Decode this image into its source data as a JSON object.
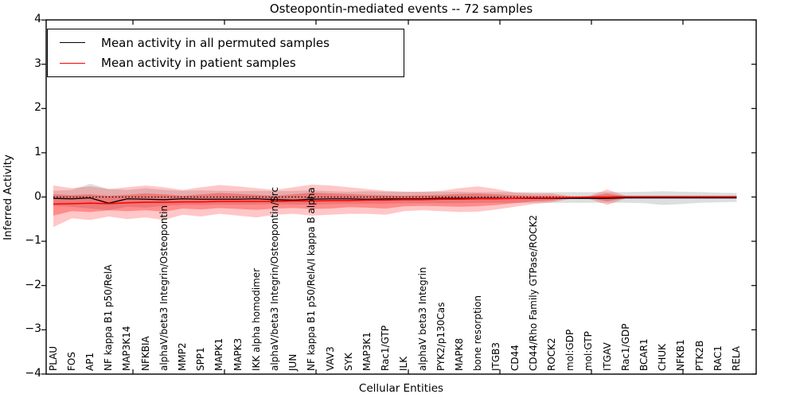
{
  "title": "Osteopontin-mediated events -- 72 samples",
  "axes": {
    "ylabel": "Inferred Activity",
    "xlabel": "Cellular Entities",
    "yticks": [
      "4",
      "3",
      "2",
      "1",
      "0",
      "−1",
      "−2",
      "−3",
      "−4"
    ]
  },
  "legend": {
    "items": [
      {
        "label": "Mean activity in all permuted samples",
        "color": "#000000"
      },
      {
        "label": "Mean activity in patient samples",
        "color": "#ff0000"
      }
    ]
  },
  "chart_data": {
    "type": "line",
    "title": "Osteopontin-mediated events -- 72 samples",
    "xlabel": "Cellular Entities",
    "ylabel": "Inferred Activity",
    "ylim": [
      -4,
      4
    ],
    "grid": false,
    "legend_position": "upper left",
    "baseline": {
      "value": 0,
      "style": "dotted",
      "color": "#000000"
    },
    "categories": [
      "PLAU",
      "FOS",
      "AP1",
      "NF kappa B1 p50/RelA",
      "MAP3K14",
      "NFKBIA",
      "alphaV/beta3 Integrin/Osteopontin",
      "MMP2",
      "SPP1",
      "MAPK1",
      "MAPK3",
      "IKK alpha homodimer",
      "alphaV/beta3 Integrin/Osteopontin/Src",
      "JUN",
      "NF kappa B1 p50/RelA/I kappa B alpha",
      "VAV3",
      "SYK",
      "MAP3K1",
      "Rac1/GTP",
      "ILK",
      "alphaV beta3 Integrin",
      "PYK2/p130Cas",
      "MAPK8",
      "bone resorption",
      "ITGB3",
      "CD44",
      "CD44/Rho Family GTPase/ROCK2",
      "ROCK2",
      "mol:GDP",
      "mol:GTP",
      "ITGAV",
      "Rac1/GDP",
      "BCAR1",
      "CHUK",
      "NFKB1",
      "PTK2B",
      "RAC1",
      "RELA"
    ],
    "series": [
      {
        "name": "Mean activity in all permuted samples",
        "color": "#000000",
        "width": 1.3,
        "values": [
          -0.03,
          -0.04,
          -0.02,
          -0.14,
          -0.04,
          -0.05,
          -0.06,
          -0.04,
          -0.05,
          -0.05,
          -0.05,
          -0.04,
          -0.06,
          -0.07,
          -0.05,
          -0.04,
          -0.04,
          -0.05,
          -0.04,
          -0.04,
          -0.04,
          -0.03,
          -0.03,
          -0.03,
          -0.03,
          -0.03,
          -0.03,
          -0.03,
          -0.03,
          -0.03,
          -0.03,
          -0.02,
          -0.02,
          -0.02,
          -0.02,
          -0.02,
          -0.02,
          -0.02
        ]
      },
      {
        "name": "Mean activity in patient samples",
        "color": "#ff0000",
        "width": 1.5,
        "values": [
          -0.16,
          -0.15,
          -0.14,
          -0.15,
          -0.13,
          -0.12,
          -0.12,
          -0.11,
          -0.11,
          -0.1,
          -0.1,
          -0.1,
          -0.1,
          -0.09,
          -0.09,
          -0.08,
          -0.08,
          -0.07,
          -0.07,
          -0.06,
          -0.06,
          -0.05,
          -0.05,
          -0.04,
          -0.04,
          -0.03,
          -0.02,
          -0.02,
          -0.01,
          0.0,
          0.0,
          0.01,
          0.01,
          0.01,
          0.01,
          0.01,
          0.01,
          0.01
        ]
      }
    ],
    "bands": [
      {
        "name": "permuted-samples-range",
        "color": "rgba(0,0,0,0.13)",
        "upper": [
          0.14,
          0.16,
          0.3,
          0.18,
          0.16,
          0.2,
          0.16,
          0.14,
          0.15,
          0.14,
          0.13,
          0.14,
          0.13,
          0.14,
          0.15,
          0.13,
          0.12,
          0.13,
          0.12,
          0.12,
          0.12,
          0.12,
          0.12,
          0.11,
          0.11,
          0.11,
          0.11,
          0.11,
          0.11,
          0.11,
          0.11,
          0.11,
          0.12,
          0.13,
          0.12,
          0.11,
          0.1,
          0.09
        ],
        "lower": [
          -0.2,
          -0.22,
          -0.26,
          -0.3,
          -0.22,
          -0.24,
          -0.2,
          -0.18,
          -0.18,
          -0.17,
          -0.17,
          -0.17,
          -0.16,
          -0.17,
          -0.17,
          -0.16,
          -0.15,
          -0.15,
          -0.15,
          -0.14,
          -0.14,
          -0.14,
          -0.14,
          -0.13,
          -0.13,
          -0.13,
          -0.13,
          -0.13,
          -0.13,
          -0.13,
          -0.13,
          -0.13,
          -0.14,
          -0.18,
          -0.16,
          -0.13,
          -0.12,
          -0.11
        ]
      },
      {
        "name": "patient-samples-outer-range",
        "color": "rgba(255,0,0,0.22)",
        "upper": [
          0.26,
          0.2,
          0.24,
          0.18,
          0.22,
          0.26,
          0.22,
          0.16,
          0.22,
          0.27,
          0.24,
          0.2,
          0.16,
          0.22,
          0.28,
          0.26,
          0.22,
          0.18,
          0.14,
          0.12,
          0.12,
          0.14,
          0.2,
          0.24,
          0.18,
          0.1,
          0.08,
          0.08,
          0.02,
          0.02,
          0.17,
          0.02,
          0.01,
          0.01,
          0.01,
          0.01,
          0.01,
          0.01
        ],
        "lower": [
          -0.68,
          -0.48,
          -0.52,
          -0.44,
          -0.5,
          -0.46,
          -0.52,
          -0.4,
          -0.44,
          -0.38,
          -0.42,
          -0.46,
          -0.4,
          -0.38,
          -0.42,
          -0.4,
          -0.38,
          -0.38,
          -0.4,
          -0.32,
          -0.3,
          -0.32,
          -0.34,
          -0.33,
          -0.28,
          -0.22,
          -0.16,
          -0.12,
          -0.04,
          -0.04,
          -0.18,
          -0.03,
          -0.02,
          -0.02,
          -0.02,
          -0.02,
          -0.02,
          -0.02
        ]
      },
      {
        "name": "patient-samples-inner-range",
        "color": "rgba(255,0,0,0.30)",
        "upper": [
          0.06,
          0.04,
          0.06,
          0.03,
          0.05,
          0.08,
          0.06,
          0.03,
          0.06,
          0.09,
          0.07,
          0.05,
          0.03,
          0.06,
          0.1,
          0.08,
          0.07,
          0.05,
          0.04,
          0.03,
          0.04,
          0.05,
          0.07,
          0.08,
          0.06,
          0.04,
          0.03,
          0.03,
          0.01,
          0.01,
          0.08,
          0.01,
          0.01,
          0.01,
          0.01,
          0.01,
          0.01,
          0.01
        ],
        "lower": [
          -0.42,
          -0.32,
          -0.34,
          -0.3,
          -0.32,
          -0.3,
          -0.33,
          -0.26,
          -0.28,
          -0.25,
          -0.27,
          -0.29,
          -0.26,
          -0.25,
          -0.27,
          -0.26,
          -0.23,
          -0.24,
          -0.26,
          -0.21,
          -0.2,
          -0.21,
          -0.22,
          -0.21,
          -0.18,
          -0.14,
          -0.1,
          -0.08,
          -0.02,
          -0.02,
          -0.1,
          -0.02,
          -0.01,
          -0.01,
          -0.01,
          -0.01,
          -0.01,
          -0.01
        ]
      }
    ]
  }
}
